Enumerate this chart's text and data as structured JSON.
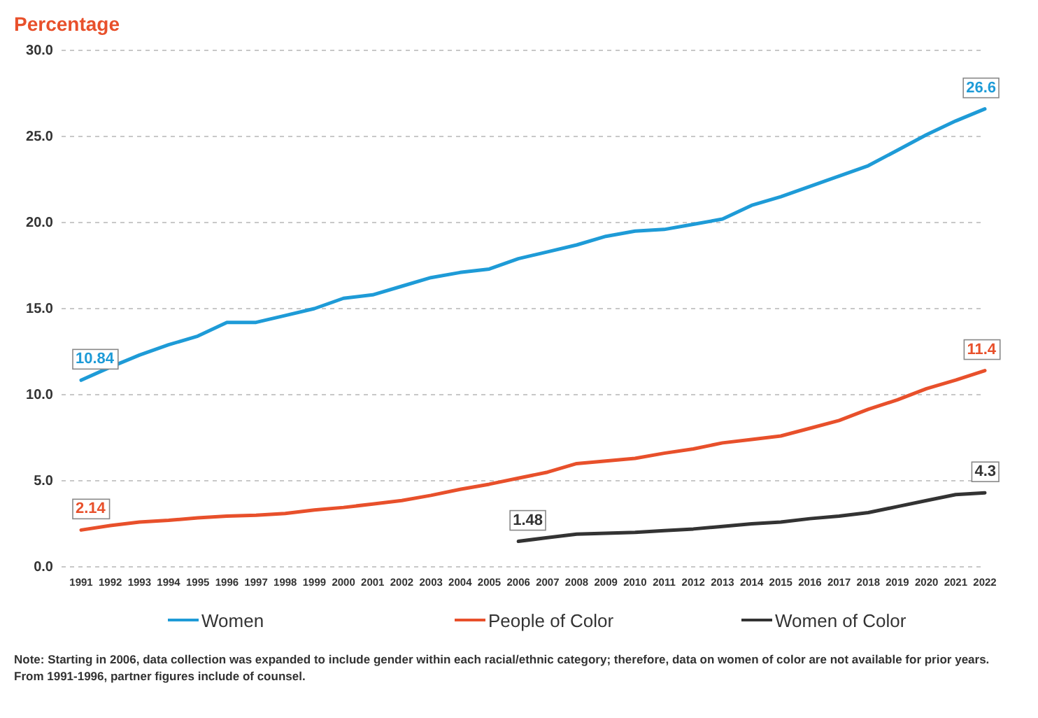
{
  "chart_data": {
    "type": "line",
    "ylabel": "Percentage",
    "categories": [
      "1991",
      "1992",
      "1993",
      "1994",
      "1995",
      "1996",
      "1997",
      "1998",
      "1999",
      "2000",
      "2001",
      "2002",
      "2003",
      "2004",
      "2005",
      "2006",
      "2007",
      "2008",
      "2009",
      "2010",
      "2011",
      "2012",
      "2013",
      "2014",
      "2015",
      "2016",
      "2017",
      "2018",
      "2019",
      "2020",
      "2021",
      "2022"
    ],
    "series": [
      {
        "name": "Women",
        "color": "#1e9bd7",
        "values": [
          10.84,
          11.6,
          12.3,
          12.9,
          13.4,
          14.2,
          14.2,
          14.6,
          15.0,
          15.6,
          15.8,
          16.3,
          16.8,
          17.1,
          17.3,
          17.9,
          18.3,
          18.7,
          19.2,
          19.5,
          19.6,
          19.9,
          20.2,
          21.0,
          21.5,
          22.1,
          22.7,
          23.3,
          24.2,
          25.1,
          25.9,
          26.6
        ],
        "value_labels": [
          "10.84",
          null,
          null,
          null,
          null,
          null,
          null,
          null,
          null,
          null,
          null,
          null,
          null,
          null,
          null,
          null,
          null,
          null,
          null,
          null,
          null,
          null,
          null,
          null,
          null,
          null,
          null,
          null,
          null,
          null,
          null,
          "26.6"
        ]
      },
      {
        "name": "People of Color",
        "color": "#e8502b",
        "values": [
          2.14,
          2.4,
          2.6,
          2.7,
          2.85,
          2.95,
          3.0,
          3.1,
          3.3,
          3.45,
          3.65,
          3.85,
          4.15,
          4.5,
          4.8,
          5.15,
          5.5,
          6.0,
          6.15,
          6.3,
          6.6,
          6.85,
          7.2,
          7.4,
          7.6,
          8.05,
          8.5,
          9.15,
          9.7,
          10.35,
          10.85,
          11.4
        ],
        "value_labels": [
          "2.14",
          null,
          null,
          null,
          null,
          null,
          null,
          null,
          null,
          null,
          null,
          null,
          null,
          null,
          null,
          null,
          null,
          null,
          null,
          null,
          null,
          null,
          null,
          null,
          null,
          null,
          null,
          null,
          null,
          null,
          null,
          "11.4"
        ]
      },
      {
        "name": "Women of Color",
        "color": "#333333",
        "values": [
          null,
          null,
          null,
          null,
          null,
          null,
          null,
          null,
          null,
          null,
          null,
          null,
          null,
          null,
          null,
          1.48,
          1.7,
          1.9,
          1.95,
          2.0,
          2.1,
          2.2,
          2.35,
          2.5,
          2.6,
          2.8,
          2.95,
          3.15,
          3.5,
          3.85,
          4.2,
          4.3
        ],
        "value_labels": [
          null,
          null,
          null,
          null,
          null,
          null,
          null,
          null,
          null,
          null,
          null,
          null,
          null,
          null,
          null,
          "1.48",
          null,
          null,
          null,
          null,
          null,
          null,
          null,
          null,
          null,
          null,
          null,
          null,
          null,
          null,
          null,
          "4.3"
        ]
      }
    ],
    "ylim": [
      0,
      30
    ],
    "yticks": [
      {
        "value": 0,
        "label": "0.0"
      },
      {
        "value": 5,
        "label": "5.0"
      },
      {
        "value": 10,
        "label": "10.0"
      },
      {
        "value": 15,
        "label": "15.0"
      },
      {
        "value": 20,
        "label": "20.0"
      },
      {
        "value": 25,
        "label": "25.0"
      },
      {
        "value": 30,
        "label": "30.0"
      }
    ],
    "grid": "y",
    "legend": "bottom",
    "line_style": "solid",
    "annotations": [
      "Note: Starting in 2006, data collection was expanded to include gender within each racial/ethnic category; therefore, data on women of color are not available for prior years. From 1991-1996, partner figures include of counsel."
    ]
  }
}
